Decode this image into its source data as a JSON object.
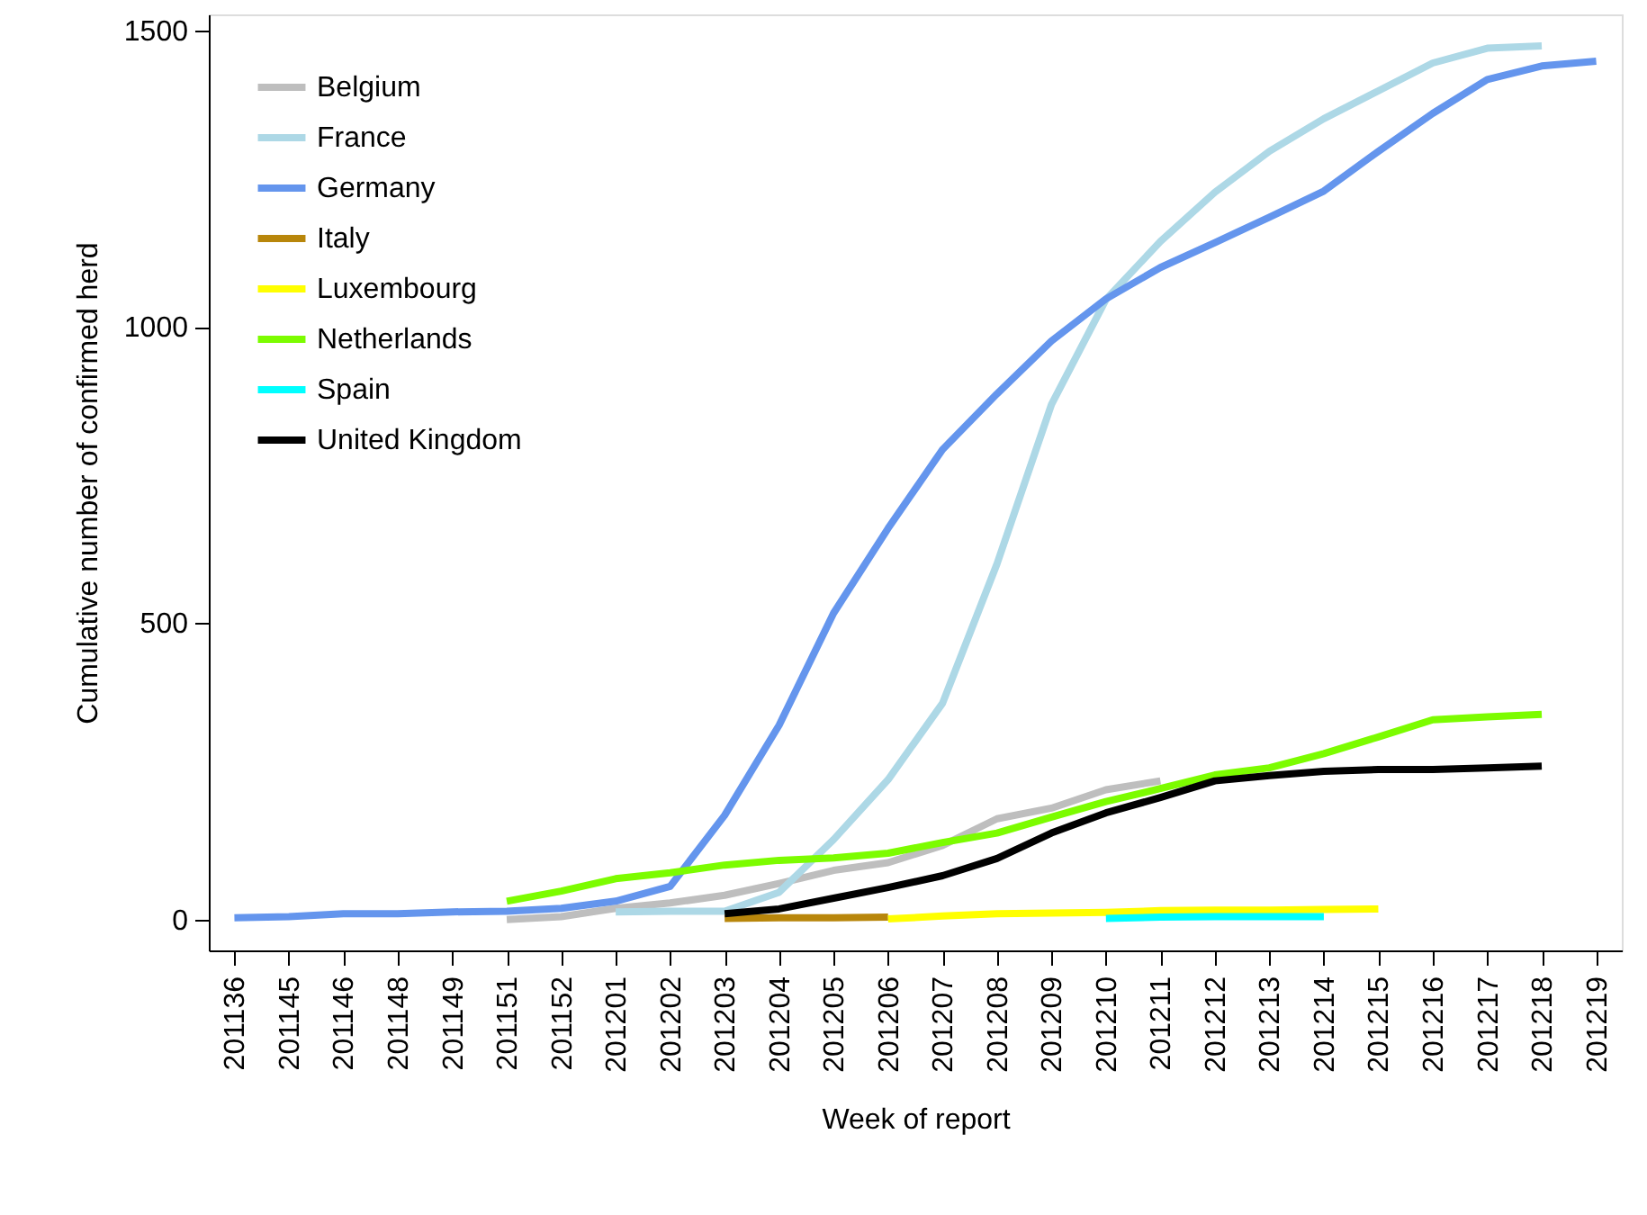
{
  "chart_data": {
    "type": "line",
    "xlabel": "Week of report",
    "ylabel": "Cumulative number of confirmed herd",
    "categories": [
      "201136",
      "201145",
      "201146",
      "201148",
      "201149",
      "201151",
      "201152",
      "201201",
      "201202",
      "201203",
      "201204",
      "201205",
      "201206",
      "201207",
      "201208",
      "201209",
      "201210",
      "201211",
      "201212",
      "201213",
      "201214",
      "201215",
      "201216",
      "201217",
      "201218",
      "201219"
    ],
    "ylim": [
      -52,
      1527
    ],
    "yticks": [
      0,
      500,
      1000,
      1500
    ],
    "grid": false,
    "legend": "top left",
    "marker": "none",
    "line_style": "solid",
    "series": [
      {
        "name": "Belgium",
        "color": "#bebebe",
        "values": [
          null,
          null,
          null,
          null,
          null,
          0,
          5,
          19,
          28,
          41,
          61,
          83,
          96,
          125,
          170,
          188,
          219,
          234,
          null,
          null,
          null,
          null,
          null,
          null,
          null,
          null
        ]
      },
      {
        "name": "France",
        "color": "#add8e6",
        "values": [
          null,
          null,
          null,
          null,
          null,
          null,
          null,
          13,
          14,
          14,
          46,
          135,
          236,
          365,
          600,
          869,
          1046,
          1144,
          1227,
          1296,
          1351,
          1398,
          1445,
          1470,
          1474,
          null
        ]
      },
      {
        "name": "Germany",
        "color": "#6495ed",
        "values": [
          3,
          5,
          10,
          10,
          13,
          14,
          19,
          31,
          56,
          176,
          328,
          517,
          660,
          793,
          887,
          976,
          1047,
          1100,
          1142,
          1185,
          1229,
          1296,
          1360,
          1417,
          1440,
          1448
        ]
      },
      {
        "name": "Italy",
        "color": "#b8860b",
        "values": [
          null,
          null,
          null,
          null,
          null,
          null,
          null,
          null,
          null,
          2,
          3,
          3,
          4,
          null,
          null,
          null,
          null,
          null,
          null,
          null,
          null,
          null,
          null,
          null,
          null,
          null
        ]
      },
      {
        "name": "Luxembourg",
        "color": "#ffff00",
        "values": [
          null,
          null,
          null,
          null,
          null,
          null,
          null,
          null,
          null,
          null,
          null,
          null,
          1,
          6,
          10,
          11,
          12,
          15,
          16,
          16,
          17,
          18,
          null,
          null,
          null,
          null
        ]
      },
      {
        "name": "Netherlands",
        "color": "#7cfc00",
        "values": [
          null,
          null,
          null,
          null,
          null,
          31,
          48,
          69,
          79,
          92,
          100,
          104,
          112,
          130,
          146,
          173,
          199,
          221,
          244,
          256,
          280,
          308,
          337,
          342,
          346,
          null
        ]
      },
      {
        "name": "Spain",
        "color": "#00ffff",
        "values": [
          null,
          null,
          null,
          null,
          null,
          null,
          null,
          null,
          null,
          null,
          null,
          null,
          null,
          null,
          null,
          null,
          2,
          4,
          5,
          5,
          5,
          null,
          null,
          null,
          null,
          null
        ]
      },
      {
        "name": "United Kingdom",
        "color": "#000000",
        "values": [
          null,
          null,
          null,
          null,
          null,
          null,
          null,
          null,
          null,
          10,
          18,
          36,
          54,
          74,
          103,
          146,
          180,
          206,
          234,
          243,
          250,
          253,
          253,
          256,
          259,
          null
        ]
      }
    ]
  }
}
